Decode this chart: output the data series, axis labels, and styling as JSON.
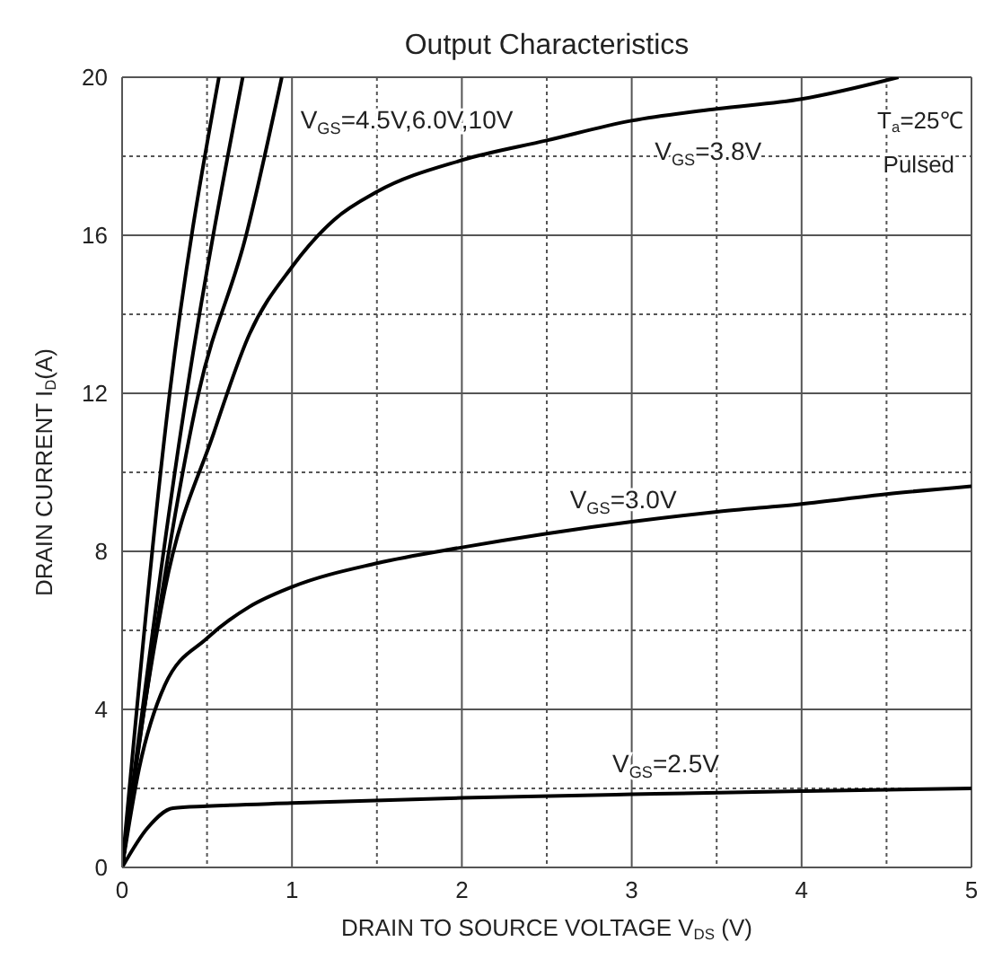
{
  "chart_data": {
    "type": "line",
    "title": "Output Characteristics",
    "xlabel": "DRAIN TO SOURCE VOLTAGE V$_{DS}$ (V)",
    "ylabel": "DRAIN CURRENT I$_{D}$(A)",
    "xlim": [
      0,
      5
    ],
    "ylim": [
      0,
      20
    ],
    "xticks": [
      0,
      {
        "value": 0.5,
        "label": null
      },
      1,
      {
        "value": 1.5,
        "label": null
      },
      2,
      {
        "value": 2.5,
        "label": null
      },
      3,
      {
        "value": 3.5,
        "label": null
      },
      4,
      {
        "value": 4.5,
        "label": null
      },
      5
    ],
    "yticks": [
      0,
      {
        "value": 2,
        "label": null
      },
      4,
      {
        "value": 6,
        "label": null
      },
      8,
      {
        "value": 10,
        "label": null
      },
      12,
      {
        "value": 14,
        "label": null
      },
      16,
      {
        "value": 18,
        "label": null
      },
      20
    ],
    "grid": true,
    "marker": "none",
    "line_style": "solid",
    "annotations": [
      "V$_{GS}$=4.5V,6.0V,10V",
      "T$_{a}$=25℃",
      "Pulsed"
    ],
    "series": [
      {
        "color": "#000000",
        "x": [
          0,
          0.28,
          0.57
        ],
        "values": [
          0,
          12,
          20
        ]
      },
      {
        "color": "#000000",
        "x": [
          0,
          0.38,
          0.71
        ],
        "values": [
          0,
          12,
          20
        ]
      },
      {
        "color": "#000000",
        "x": [
          0,
          0.2,
          0.45,
          0.73,
          0.94
        ],
        "values": [
          0,
          6,
          12,
          16,
          20
        ]
      },
      {
        "name": "V$_{GS}$=3.8V",
        "color": "#000000",
        "x": [
          0,
          0.13,
          0.25,
          0.54,
          0.75,
          1,
          1.25,
          1.5,
          2,
          2.5,
          3,
          3.5,
          4,
          4.57
        ],
        "values": [
          0,
          4,
          7,
          11,
          13.5,
          15.2,
          16.4,
          17.1,
          17.9,
          18.4,
          18.9,
          19.2,
          19.45,
          20
        ]
      },
      {
        "name": "V$_{GS}$=3.0V",
        "color": "#000000",
        "x": [
          0,
          0.1,
          0.25,
          0.5,
          0.75,
          1,
          1.5,
          2,
          2.5,
          3,
          3.5,
          4,
          4.5,
          5
        ],
        "values": [
          0,
          2.5,
          4.6,
          5.8,
          6.6,
          7.1,
          7.7,
          8.1,
          8.45,
          8.75,
          9,
          9.2,
          9.45,
          9.65
        ]
      },
      {
        "name": "V$_{GS}$=2.5V",
        "color": "#000000",
        "x": [
          0,
          0.15,
          0.3,
          0.5,
          1,
          2,
          3,
          4,
          5
        ],
        "values": [
          0,
          1,
          1.5,
          1.55,
          1.63,
          1.76,
          1.85,
          1.93,
          2
        ]
      }
    ]
  }
}
